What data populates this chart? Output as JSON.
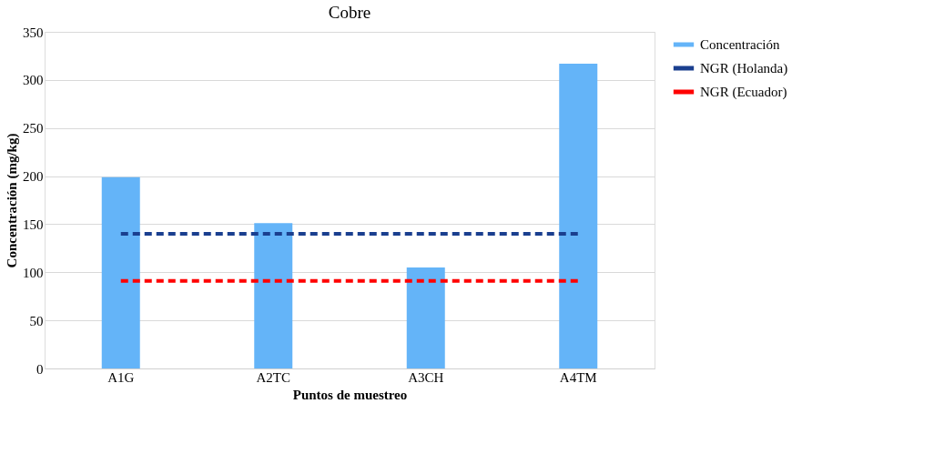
{
  "chart_data": {
    "type": "bar",
    "title": "Cobre",
    "xlabel": "Puntos de muestreo",
    "ylabel": "Concentración  (mg/kg)",
    "categories": [
      "A1G",
      "A2TC",
      "A3CH",
      "A4TM"
    ],
    "series": [
      {
        "name": "Concentración",
        "color": "#64b4f8",
        "values": [
          199,
          151,
          105,
          317
        ]
      },
      {
        "name": "NGR (Holanda)",
        "type": "line",
        "line_style": "dashed",
        "color": "#1a3f8f",
        "values": [
          140,
          140,
          140,
          140
        ]
      },
      {
        "name": "NGR (Ecuador)",
        "type": "line",
        "line_style": "dashed",
        "color": "#ff0000",
        "values": [
          91,
          91,
          91,
          91
        ]
      }
    ],
    "ylim": [
      0,
      350
    ],
    "yticks": [
      0,
      50,
      100,
      150,
      200,
      250,
      300,
      350
    ],
    "grid": "y",
    "legend": "right"
  }
}
